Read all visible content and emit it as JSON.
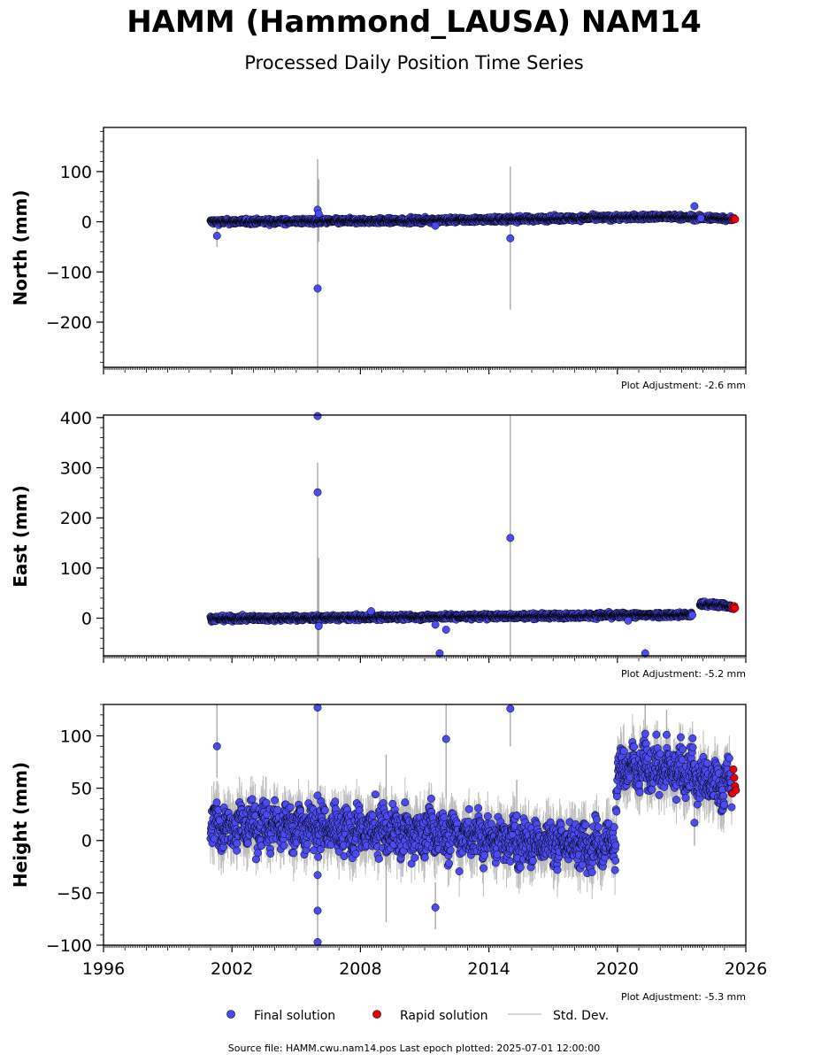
{
  "title": "HAMM (Hammond_LAUSA) NAM14",
  "subtitle": "Processed Daily Position Time Series",
  "footer": "Source file: HAMM.cwu.nam14.pos  Last epoch plotted: 2025-07-01 12:00:00",
  "legend": {
    "final_label": "Final solution",
    "rapid_label": "Rapid solution",
    "std_label": "Std. Dev."
  },
  "colors": {
    "final": "#4b4bf2",
    "rapid": "#e8000b",
    "std": "#bdbdbd",
    "edge": "#000000"
  },
  "chart_data": [
    {
      "type": "scatter",
      "ylabel": "North (mm)",
      "adjustment": "Plot Adjustment: -2.6 mm",
      "xlim": [
        1996,
        2026
      ],
      "ylim": [
        -290,
        188
      ],
      "yticks": [
        100,
        0,
        -100,
        -200
      ],
      "trend": [
        [
          2001.0,
          0
        ],
        [
          2010.0,
          2
        ],
        [
          2018.0,
          7
        ],
        [
          2022.0,
          10
        ],
        [
          2025.0,
          7
        ],
        [
          2025.5,
          5
        ]
      ],
      "noise": 2.5,
      "gaps": [],
      "outliers": [
        [
          2001.3,
          -28
        ],
        [
          2006.0,
          24
        ],
        [
          2006.05,
          16
        ],
        [
          2006.0,
          -133
        ],
        [
          2015.0,
          -33
        ],
        [
          2011.5,
          -8
        ],
        [
          2023.6,
          31
        ],
        [
          2023.9,
          7
        ]
      ],
      "errorbars": [
        [
          2006.0,
          -290,
          125
        ],
        [
          2006.05,
          -40,
          85
        ],
        [
          2015.0,
          -175,
          110
        ],
        [
          2001.3,
          -50,
          0
        ]
      ],
      "rapid": [
        [
          2025.38,
          6
        ],
        [
          2025.42,
          4
        ],
        [
          2025.46,
          7
        ],
        [
          2025.5,
          5
        ]
      ]
    },
    {
      "type": "scatter",
      "ylabel": "East (mm)",
      "adjustment": "Plot Adjustment: -5.2 mm",
      "xlim": [
        1996,
        2026
      ],
      "ylim": [
        -75,
        405
      ],
      "yticks": [
        400,
        300,
        200,
        100,
        0
      ],
      "trend": [
        [
          2001.0,
          -1
        ],
        [
          2010.0,
          2
        ],
        [
          2018.0,
          5
        ],
        [
          2023.7,
          7
        ],
        [
          2023.9,
          28
        ],
        [
          2025.0,
          26
        ],
        [
          2025.5,
          20
        ]
      ],
      "noise": 2.5,
      "gaps": [
        [
          2023.5,
          2023.85
        ]
      ],
      "outliers": [
        [
          2006.0,
          403
        ],
        [
          2006.0,
          251
        ],
        [
          2006.05,
          -16
        ],
        [
          2015.0,
          160
        ],
        [
          2011.5,
          -13
        ],
        [
          2012.0,
          -23
        ],
        [
          2011.7,
          -70
        ],
        [
          2021.3,
          -70
        ],
        [
          2008.5,
          14
        ],
        [
          2020.5,
          -5
        ]
      ],
      "errorbars": [
        [
          2006.0,
          -75,
          310
        ],
        [
          2006.05,
          -75,
          120
        ],
        [
          2015.0,
          -75,
          405
        ],
        [
          2021.3,
          -75,
          -60
        ]
      ],
      "rapid": [
        [
          2025.38,
          22
        ],
        [
          2025.42,
          18
        ],
        [
          2025.46,
          24
        ],
        [
          2025.5,
          20
        ]
      ]
    },
    {
      "type": "scatter",
      "ylabel": "Height (mm)",
      "adjustment": "Plot Adjustment: -5.3 mm",
      "xlim": [
        1996,
        2026
      ],
      "xticks": [
        1996,
        2002,
        2008,
        2014,
        2020,
        2026
      ],
      "ylim": [
        -100,
        130
      ],
      "yticks": [
        100,
        50,
        0,
        -50,
        -100
      ],
      "trend": [
        [
          2001.0,
          15
        ],
        [
          2005.0,
          14
        ],
        [
          2008.0,
          8
        ],
        [
          2012.0,
          7
        ],
        [
          2016.0,
          -2
        ],
        [
          2019.9,
          -3
        ],
        [
          2020.0,
          68
        ],
        [
          2023.5,
          68
        ],
        [
          2023.9,
          55
        ],
        [
          2025.5,
          53
        ]
      ],
      "noise": 10,
      "gaps": [],
      "outliers": [
        [
          2001.3,
          90
        ],
        [
          2006.0,
          127
        ],
        [
          2006.0,
          43
        ],
        [
          2006.0,
          -33
        ],
        [
          2006.0,
          -67
        ],
        [
          2006.0,
          -97
        ],
        [
          2008.7,
          44
        ],
        [
          2011.5,
          -64
        ],
        [
          2012.0,
          97
        ],
        [
          2015.0,
          126
        ],
        [
          2015.3,
          24
        ],
        [
          2021.3,
          102
        ],
        [
          2022.3,
          101
        ],
        [
          2023.6,
          17
        ],
        [
          2009.5,
          35
        ]
      ],
      "errorbars": [
        [
          2006.0,
          -100,
          130
        ],
        [
          2001.3,
          60,
          130
        ],
        [
          2012.0,
          40,
          130
        ],
        [
          2015.0,
          90,
          130
        ],
        [
          2011.5,
          -85,
          -40
        ],
        [
          2009.2,
          -78,
          82
        ],
        [
          2021.3,
          80,
          130
        ],
        [
          2022.3,
          75,
          125
        ],
        [
          2023.6,
          -5,
          40
        ],
        [
          2015.3,
          0,
          58
        ]
      ],
      "rapid": [
        [
          2025.38,
          45
        ],
        [
          2025.42,
          68
        ],
        [
          2025.46,
          60
        ],
        [
          2025.5,
          52
        ],
        [
          2025.54,
          48
        ]
      ]
    }
  ]
}
